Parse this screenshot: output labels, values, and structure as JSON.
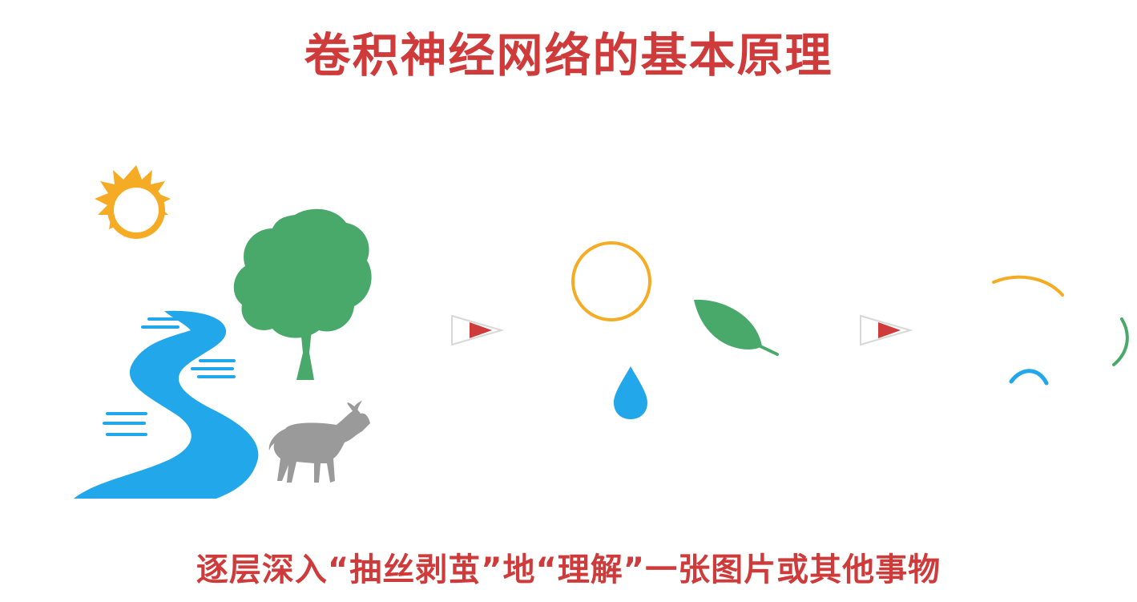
{
  "slide": {
    "title": "卷积神经网络的基本原理",
    "caption": "逐层深入“抽丝剥茧”地“理解”一张图片或其他事物"
  },
  "icons": {
    "scene": [
      "sun-icon",
      "tree-icon",
      "river-icon",
      "goat-icon"
    ],
    "parts": [
      "circle-outline-icon",
      "leaf-icon",
      "water-drop-icon"
    ],
    "edges": [
      "orange-arc-icon",
      "green-arc-icon",
      "blue-arc-icon"
    ],
    "arrows": [
      "right-arrow-icon",
      "right-arrow-icon"
    ]
  },
  "colors": {
    "accent": "#cf3a3a",
    "sun": "#f5ac24",
    "tree": "#48a96b",
    "water": "#22a8ea",
    "goat": "#9a9a9a"
  }
}
